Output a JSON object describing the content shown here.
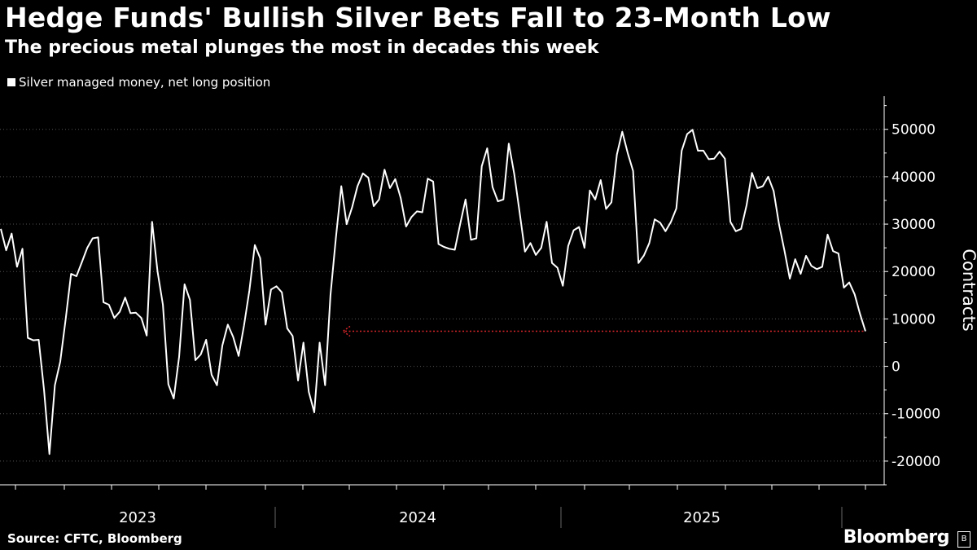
{
  "header": {
    "title": "Hedge Funds' Bullish Silver Bets Fall to 23-Month Low",
    "subtitle": "The precious metal plunges the most in decades this week"
  },
  "footer": {
    "source": "Source: CFTC, Bloomberg",
    "brand": "Bloomberg"
  },
  "colors": {
    "line": "#ffffff",
    "annotation": "#d9262b",
    "grid": "#555555",
    "background": "#000000"
  },
  "chart_data": {
    "type": "line",
    "title": "Hedge Funds' Bullish Silver Bets Fall to 23-Month Low",
    "subtitle": "The precious metal plunges the most in decades this week",
    "ylabel": "Contracts",
    "xlabel": "",
    "ylim": [
      -25000,
      57000
    ],
    "yticks": [
      50000,
      40000,
      30000,
      20000,
      10000,
      0,
      -10000,
      -20000
    ],
    "ytick_labels": [
      "50000",
      "40000",
      "30000",
      "20000",
      "10000",
      "0",
      "-10000",
      "-20000"
    ],
    "year_labels": [
      "2023",
      "2024",
      "2025"
    ],
    "legend_position": "top-left",
    "series": [
      {
        "name": "Silver managed money, net long position",
        "values": [
          29000,
          24500,
          28000,
          21000,
          24800,
          6000,
          5500,
          5600,
          -5000,
          -18500,
          -4000,
          1000,
          10000,
          19500,
          19000,
          22000,
          25000,
          27000,
          27200,
          13500,
          13000,
          10200,
          11500,
          14500,
          11200,
          11300,
          10200,
          6500,
          30500,
          20000,
          13000,
          -3800,
          -6800,
          2000,
          17300,
          14000,
          1300,
          2500,
          5600,
          -1800,
          -4000,
          4400,
          8800,
          6200,
          2200,
          8600,
          16000,
          25600,
          22800,
          8800,
          16200,
          16900,
          15600,
          8000,
          6400,
          -3000,
          5000,
          -5400,
          -9700,
          5000,
          -4000,
          15000,
          27000,
          38000,
          30000,
          33500,
          38000,
          40700,
          39800,
          33800,
          35200,
          41500,
          37600,
          39500,
          35500,
          29500,
          31500,
          32700,
          32500,
          39600,
          39000,
          25800,
          25200,
          24800,
          24600,
          30000,
          35200,
          26700,
          27000,
          42200,
          46000,
          37800,
          34800,
          35200,
          47000,
          40600,
          32500,
          24200,
          26000,
          23500,
          25000,
          30500,
          21800,
          20800,
          17000,
          25400,
          28700,
          29400,
          25000,
          37100,
          35200,
          39300,
          33200,
          34600,
          44700,
          49500,
          45000,
          41200,
          21800,
          23400,
          26000,
          31000,
          30300,
          28500,
          30500,
          33300,
          45500,
          49000,
          49900,
          45500,
          45500,
          43700,
          43800,
          45300,
          43800,
          30500,
          28500,
          29000,
          34000,
          40800,
          37600,
          38000,
          40000,
          37000,
          30000,
          24500,
          18500,
          22600,
          19500,
          23300,
          21200,
          20500,
          21000,
          27800,
          24300,
          23800,
          16600,
          17700,
          15200,
          11000,
          7400
        ]
      }
    ],
    "annotations": [
      {
        "type": "dotted-arrow",
        "label": "",
        "y": 7400
      }
    ]
  }
}
